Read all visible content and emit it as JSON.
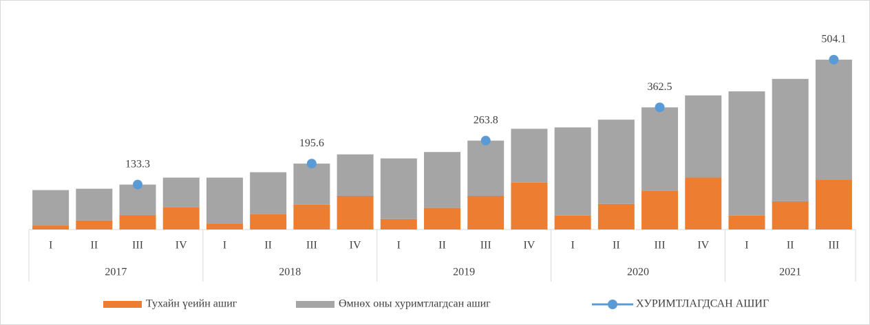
{
  "chart_data": {
    "type": "bar",
    "stacked": true,
    "groups": [
      {
        "label": "2017",
        "categories": [
          "I",
          "II",
          "III",
          "IV"
        ]
      },
      {
        "label": "2018",
        "categories": [
          "I",
          "II",
          "III",
          "IV"
        ]
      },
      {
        "label": "2019",
        "categories": [
          "I",
          "II",
          "III",
          "IV"
        ]
      },
      {
        "label": "2020",
        "categories": [
          "I",
          "II",
          "III",
          "IV"
        ]
      },
      {
        "label": "2021",
        "categories": [
          "I",
          "II",
          "III"
        ]
      }
    ],
    "series": [
      {
        "name": "Тухайн үеийн ашиг",
        "color": "#ED7D31",
        "values": [
          12,
          27,
          43,
          66,
          18,
          45,
          74,
          100,
          31,
          64,
          100,
          139,
          41,
          76,
          115,
          154,
          41,
          84,
          148
        ]
      },
      {
        "name": "Өмнөх оны хуримтлагдсан ашиг",
        "color": "#A5A5A5",
        "values": [
          105,
          94,
          90.3,
          88,
          136,
          125,
          121.6,
          123,
          180,
          166,
          163.8,
          160,
          262,
          250,
          247.5,
          244,
          369,
          363,
          356.1
        ]
      },
      {
        "name": "ХУРИМТЛАГДСАН АШИГ",
        "color": "#5B9BD5",
        "type": "line",
        "values": [
          null,
          null,
          133.3,
          null,
          null,
          null,
          195.6,
          null,
          null,
          null,
          263.8,
          null,
          null,
          null,
          362.5,
          null,
          null,
          null,
          504.1
        ]
      }
    ],
    "ylim": [
      0,
      620
    ],
    "legend": "bottom"
  }
}
